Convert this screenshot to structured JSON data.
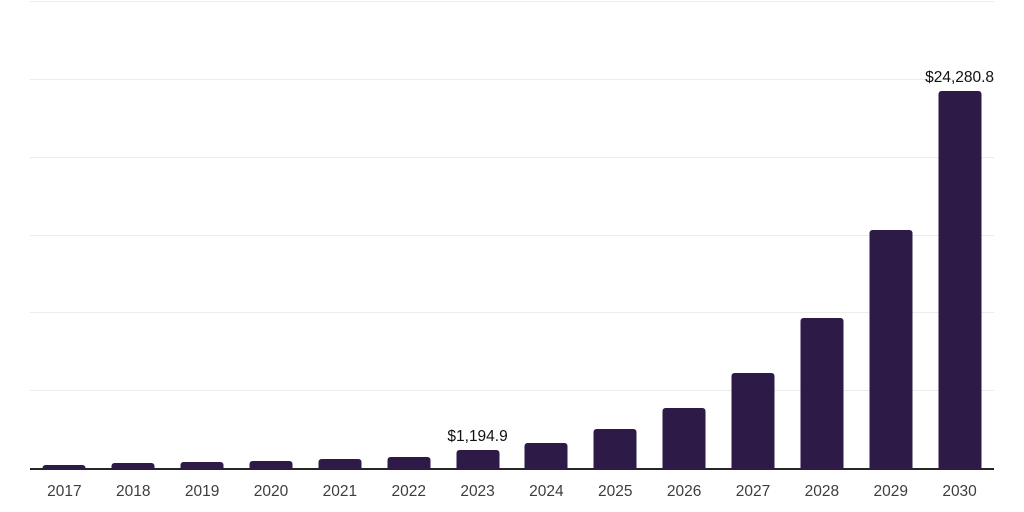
{
  "chart_data": {
    "type": "bar",
    "title": "",
    "xlabel": "",
    "ylabel": "",
    "categories": [
      "2017",
      "2018",
      "2019",
      "2020",
      "2021",
      "2022",
      "2023",
      "2024",
      "2025",
      "2026",
      "2027",
      "2028",
      "2029",
      "2030"
    ],
    "values": [
      290,
      355,
      420,
      545,
      675,
      770,
      1194.9,
      1680,
      2580,
      3900,
      6150,
      9680,
      15360,
      24280.8
    ],
    "ylim": [
      0,
      30000
    ],
    "gridline_step": 5000,
    "grid": "horizontal-only",
    "legend": "none",
    "y_tick_labels_visible": false,
    "bar_color": "#2e1a47",
    "axis_line_color": "#262626",
    "gridline_color": "#ececec",
    "label_color": "#111111",
    "tick_label_color": "#3d3d3d",
    "annotations": [
      {
        "category": "2023",
        "label": "$1,194.9"
      },
      {
        "category": "2030",
        "label": "$24,280.8"
      }
    ]
  }
}
